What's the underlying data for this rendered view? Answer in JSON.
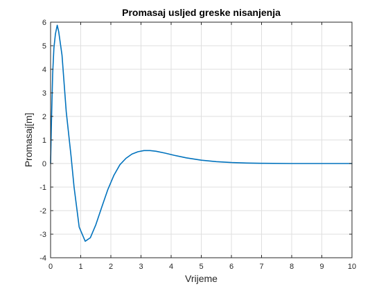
{
  "chart_data": {
    "type": "line",
    "title": "Promasaj usljed greske nisanjenja",
    "xlabel": "Vrijeme",
    "ylabel": "Promasaj[m]",
    "xlim": [
      0,
      10
    ],
    "ylim": [
      -4,
      6
    ],
    "xticks": [
      0,
      1,
      2,
      3,
      4,
      5,
      6,
      7,
      8,
      9,
      10
    ],
    "yticks": [
      -4,
      -3,
      -2,
      -1,
      0,
      1,
      2,
      3,
      4,
      5,
      6
    ],
    "grid": true,
    "series": [
      {
        "color": "#0072BD",
        "x": [
          0,
          0.03,
          0.07,
          0.11,
          0.16,
          0.22,
          0.27,
          0.38,
          0.52,
          0.68,
          0.78,
          0.95,
          1.15,
          1.32,
          1.5,
          1.7,
          1.9,
          2.1,
          2.3,
          2.5,
          2.7,
          2.9,
          3.1,
          3.3,
          3.5,
          3.8,
          4.1,
          4.5,
          5.0,
          5.5,
          6.0,
          6.5,
          7.0,
          8.0,
          9.0,
          10.0
        ],
        "y": [
          0,
          1.8,
          3.8,
          4.9,
          5.5,
          5.87,
          5.6,
          4.6,
          2.2,
          0.3,
          -1.0,
          -2.7,
          -3.3,
          -3.15,
          -2.6,
          -1.85,
          -1.1,
          -0.5,
          -0.05,
          0.22,
          0.4,
          0.5,
          0.55,
          0.55,
          0.52,
          0.44,
          0.35,
          0.24,
          0.14,
          0.08,
          0.04,
          0.02,
          0.01,
          0.0,
          0.0,
          0.0
        ]
      }
    ]
  }
}
